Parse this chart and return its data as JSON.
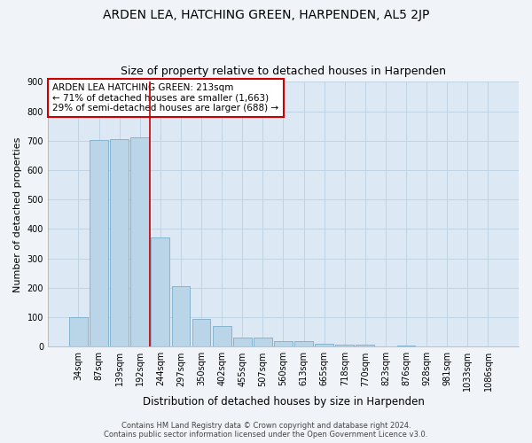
{
  "title": "ARDEN LEA, HATCHING GREEN, HARPENDEN, AL5 2JP",
  "subtitle": "Size of property relative to detached houses in Harpenden",
  "xlabel": "Distribution of detached houses by size in Harpenden",
  "ylabel": "Number of detached properties",
  "categories": [
    "34sqm",
    "87sqm",
    "139sqm",
    "192sqm",
    "244sqm",
    "297sqm",
    "350sqm",
    "402sqm",
    "455sqm",
    "507sqm",
    "560sqm",
    "613sqm",
    "665sqm",
    "718sqm",
    "770sqm",
    "823sqm",
    "876sqm",
    "928sqm",
    "981sqm",
    "1033sqm",
    "1086sqm"
  ],
  "values": [
    100,
    703,
    706,
    710,
    370,
    205,
    95,
    71,
    30,
    30,
    20,
    20,
    10,
    8,
    8,
    0,
    5,
    0,
    0,
    0,
    0
  ],
  "bar_color": "#bad4e8",
  "bar_edge_color": "#7aacc8",
  "grid_color": "#c0d4e4",
  "plot_bg_color": "#dce8f4",
  "fig_bg_color": "#f0f4f8",
  "vline_x": 3.5,
  "vline_color": "#cc0000",
  "annotation_text": "ARDEN LEA HATCHING GREEN: 213sqm\n← 71% of detached houses are smaller (1,663)\n29% of semi-detached houses are larger (688) →",
  "annotation_box_color": "#ffffff",
  "annotation_box_edge": "#cc0000",
  "ylim": [
    0,
    900
  ],
  "yticks": [
    0,
    100,
    200,
    300,
    400,
    500,
    600,
    700,
    800,
    900
  ],
  "footer": "Contains HM Land Registry data © Crown copyright and database right 2024.\nContains public sector information licensed under the Open Government Licence v3.0.",
  "title_fontsize": 10,
  "subtitle_fontsize": 9,
  "xlabel_fontsize": 8.5,
  "ylabel_fontsize": 8,
  "tick_fontsize": 7,
  "annotation_fontsize": 7.5,
  "footer_fontsize": 6
}
